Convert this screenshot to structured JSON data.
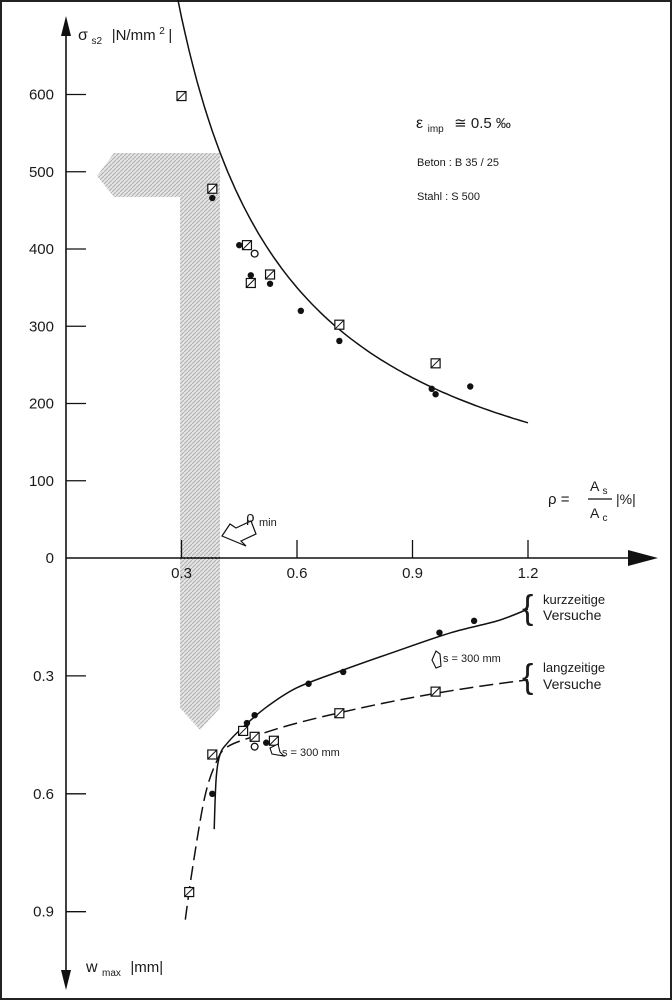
{
  "chart_data": {
    "type": "scatter",
    "y_axis_top": {
      "label_symbol": "σ",
      "label_sub": "s2",
      "label_unit": "|N/mm",
      "label_unit_sup": "2",
      "label_unit_close": "|",
      "ticks": [
        "600",
        "500",
        "400",
        "300",
        "200",
        "100",
        "0"
      ],
      "range": [
        0,
        650
      ]
    },
    "y_axis_bottom": {
      "label_symbol": "w",
      "label_sub": "max",
      "label_unit": "|mm|",
      "ticks": [
        "0.3",
        "0.6",
        "0.9"
      ],
      "range": [
        0,
        1.02
      ]
    },
    "x_axis": {
      "ticks": [
        "0.3",
        "0.6",
        "0.9",
        "1.2"
      ],
      "range": [
        0,
        1.4
      ],
      "label_rho": "ρ =",
      "label_num": "A",
      "label_num_sub": "s",
      "label_den": "A",
      "label_den_sub": "c",
      "label_unit": "|%|"
    },
    "annotations": {
      "eps_symbol": "ε",
      "eps_sub": "imp",
      "eps_value": "≅ 0.5 ‰",
      "beton": "Beton :   B 35 / 25",
      "stahl": "Stahl  :   S 500",
      "rho_min": "ρ",
      "rho_min_sub": "min",
      "spacing_1": "s = 300 mm",
      "spacing_2": "s = 300 mm",
      "kurz_1": "kurzzeitige",
      "kurz_2": "Versuche",
      "lang_1": "langzeitige",
      "lang_2": "Versuche"
    },
    "series": [
      {
        "marker": "square",
        "part": "stress",
        "points": [
          [
            0.3,
            598
          ],
          [
            0.38,
            478
          ],
          [
            0.47,
            405
          ],
          [
            0.48,
            356
          ],
          [
            0.53,
            367
          ],
          [
            0.71,
            302
          ],
          [
            0.96,
            252
          ]
        ]
      },
      {
        "marker": "dot",
        "part": "stress",
        "points": [
          [
            0.38,
            466
          ],
          [
            0.45,
            405
          ],
          [
            0.48,
            366
          ],
          [
            0.53,
            355
          ],
          [
            0.61,
            320
          ],
          [
            0.71,
            281
          ],
          [
            0.95,
            219
          ],
          [
            0.96,
            212
          ],
          [
            1.05,
            222
          ]
        ]
      },
      {
        "marker": "circle",
        "part": "stress",
        "points": [
          [
            0.49,
            394
          ]
        ]
      },
      {
        "marker": "dot",
        "part": "crack",
        "points": [
          [
            0.38,
            0.6
          ],
          [
            0.47,
            0.42
          ],
          [
            0.49,
            0.4
          ],
          [
            0.52,
            0.47
          ],
          [
            0.63,
            0.32
          ],
          [
            0.72,
            0.29
          ],
          [
            0.97,
            0.19
          ],
          [
            1.06,
            0.16
          ]
        ]
      },
      {
        "marker": "square",
        "part": "crack",
        "points": [
          [
            0.32,
            0.85
          ],
          [
            0.38,
            0.5
          ],
          [
            0.46,
            0.44
          ],
          [
            0.49,
            0.455
          ],
          [
            0.54,
            0.465
          ],
          [
            0.71,
            0.395
          ],
          [
            0.96,
            0.34
          ]
        ]
      },
      {
        "marker": "circle",
        "part": "crack",
        "points": [
          [
            0.49,
            0.48
          ]
        ]
      }
    ],
    "curves": [
      {
        "part": "stress",
        "style": "solid",
        "fit": "k/x",
        "k": 210,
        "x_from": 0.28,
        "x_to": 1.2
      },
      {
        "part": "crack",
        "style": "solid",
        "name_ref": "kurzzeitige",
        "points": [
          [
            0.385,
            0.69
          ],
          [
            0.39,
            0.56
          ],
          [
            0.4,
            0.5
          ],
          [
            0.42,
            0.47
          ],
          [
            0.46,
            0.43
          ],
          [
            0.52,
            0.38
          ],
          [
            0.6,
            0.33
          ],
          [
            0.72,
            0.285
          ],
          [
            0.85,
            0.24
          ],
          [
            1.0,
            0.19
          ],
          [
            1.12,
            0.16
          ],
          [
            1.2,
            0.13
          ]
        ]
      },
      {
        "part": "crack",
        "style": "dashed",
        "name_ref": "langzeitige",
        "points": [
          [
            0.31,
            0.92
          ],
          [
            0.33,
            0.78
          ],
          [
            0.36,
            0.61
          ],
          [
            0.39,
            0.52
          ],
          [
            0.42,
            0.48
          ],
          [
            0.5,
            0.45
          ],
          [
            0.6,
            0.42
          ],
          [
            0.75,
            0.385
          ],
          [
            0.9,
            0.355
          ],
          [
            1.05,
            0.33
          ],
          [
            1.2,
            0.31
          ]
        ]
      }
    ],
    "grid": false,
    "legend": "right"
  }
}
